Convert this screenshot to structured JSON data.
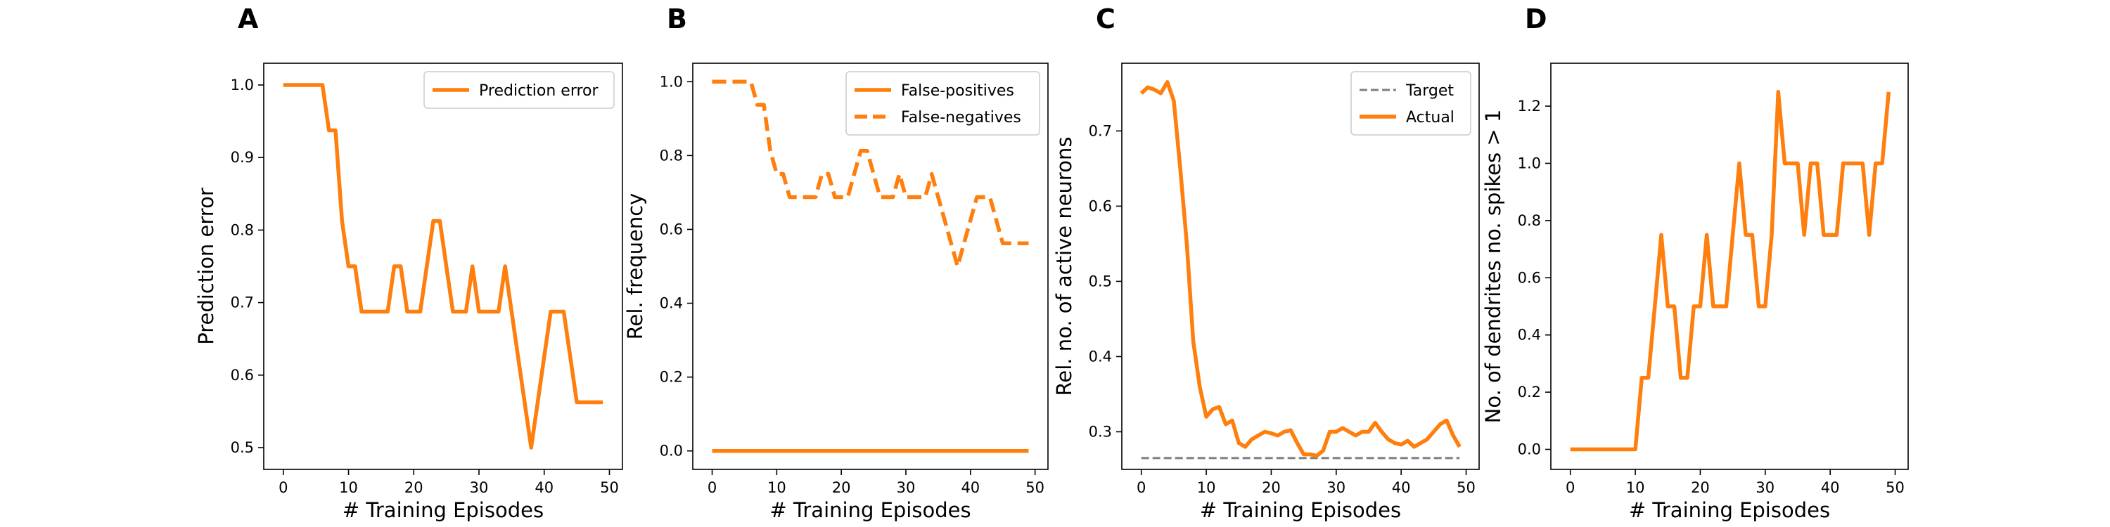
{
  "chart_data": [
    {
      "panel": "A",
      "type": "line",
      "xlabel": "# Training Episodes",
      "ylabel": "Prediction error",
      "xlim": [
        -3,
        52
      ],
      "ylim": [
        0.47,
        1.03
      ],
      "xticks": [
        0,
        10,
        20,
        30,
        40,
        50
      ],
      "yticks": [
        0.5,
        0.6,
        0.7,
        0.8,
        0.9,
        1.0
      ],
      "ytick_format": 1,
      "grid": false,
      "legend": "top-right",
      "series": [
        {
          "name": "Prediction error",
          "color": "#ff7f0e",
          "style": "solid",
          "x": [
            0,
            1,
            2,
            3,
            4,
            5,
            6,
            7,
            8,
            9,
            10,
            11,
            12,
            13,
            14,
            15,
            16,
            17,
            18,
            19,
            20,
            21,
            22,
            23,
            24,
            25,
            26,
            27,
            28,
            29,
            30,
            31,
            32,
            33,
            34,
            35,
            36,
            37,
            38,
            39,
            40,
            41,
            42,
            43,
            44,
            45,
            46,
            47,
            48,
            49
          ],
          "y": [
            1.0,
            1.0,
            1.0,
            1.0,
            1.0,
            1.0,
            1.0,
            0.9375,
            0.9375,
            0.8125,
            0.75,
            0.75,
            0.6875,
            0.6875,
            0.6875,
            0.6875,
            0.6875,
            0.75,
            0.75,
            0.6875,
            0.6875,
            0.6875,
            0.75,
            0.8125,
            0.8125,
            0.75,
            0.6875,
            0.6875,
            0.6875,
            0.75,
            0.6875,
            0.6875,
            0.6875,
            0.6875,
            0.75,
            0.6875,
            0.625,
            0.5625,
            0.5,
            0.5625,
            0.625,
            0.6875,
            0.6875,
            0.6875,
            0.625,
            0.5625,
            0.5625,
            0.5625,
            0.5625,
            0.5625
          ]
        }
      ]
    },
    {
      "panel": "B",
      "type": "line",
      "xlabel": "# Training Episodes",
      "ylabel": "Rel. frequency",
      "xlim": [
        -3,
        52
      ],
      "ylim": [
        -0.05,
        1.05
      ],
      "xticks": [
        0,
        10,
        20,
        30,
        40,
        50
      ],
      "yticks": [
        0.0,
        0.2,
        0.4,
        0.6,
        0.8,
        1.0
      ],
      "ytick_format": 1,
      "grid": false,
      "legend": "top-right",
      "series": [
        {
          "name": "False-positives",
          "color": "#ff7f0e",
          "style": "solid",
          "x": [
            0,
            1,
            2,
            3,
            4,
            5,
            6,
            7,
            8,
            9,
            10,
            11,
            12,
            13,
            14,
            15,
            16,
            17,
            18,
            19,
            20,
            21,
            22,
            23,
            24,
            25,
            26,
            27,
            28,
            29,
            30,
            31,
            32,
            33,
            34,
            35,
            36,
            37,
            38,
            39,
            40,
            41,
            42,
            43,
            44,
            45,
            46,
            47,
            48,
            49
          ],
          "y": [
            0,
            0,
            0,
            0,
            0,
            0,
            0,
            0,
            0,
            0,
            0,
            0,
            0,
            0,
            0,
            0,
            0,
            0,
            0,
            0,
            0,
            0,
            0,
            0,
            0,
            0,
            0,
            0,
            0,
            0,
            0,
            0,
            0,
            0,
            0,
            0,
            0,
            0,
            0,
            0,
            0,
            0,
            0,
            0,
            0,
            0,
            0,
            0,
            0,
            0
          ]
        },
        {
          "name": "False-negatives",
          "color": "#ff7f0e",
          "style": "dashed",
          "x": [
            0,
            1,
            2,
            3,
            4,
            5,
            6,
            7,
            8,
            9,
            10,
            11,
            12,
            13,
            14,
            15,
            16,
            17,
            18,
            19,
            20,
            21,
            22,
            23,
            24,
            25,
            26,
            27,
            28,
            29,
            30,
            31,
            32,
            33,
            34,
            35,
            36,
            37,
            38,
            39,
            40,
            41,
            42,
            43,
            44,
            45,
            46,
            47,
            48,
            49
          ],
          "y": [
            1.0,
            1.0,
            1.0,
            1.0,
            1.0,
            1.0,
            1.0,
            0.9375,
            0.9375,
            0.8125,
            0.75,
            0.75,
            0.6875,
            0.6875,
            0.6875,
            0.6875,
            0.6875,
            0.75,
            0.75,
            0.6875,
            0.6875,
            0.6875,
            0.75,
            0.8125,
            0.8125,
            0.75,
            0.6875,
            0.6875,
            0.6875,
            0.75,
            0.6875,
            0.6875,
            0.6875,
            0.6875,
            0.75,
            0.6875,
            0.625,
            0.5625,
            0.5,
            0.5625,
            0.625,
            0.6875,
            0.6875,
            0.6875,
            0.625,
            0.5625,
            0.5625,
            0.5625,
            0.5625,
            0.5625
          ]
        }
      ]
    },
    {
      "panel": "C",
      "type": "line",
      "xlabel": "# Training Episodes",
      "ylabel": "Rel. no. of active neurons",
      "xlim": [
        -3,
        52
      ],
      "ylim": [
        0.25,
        0.79
      ],
      "xticks": [
        0,
        10,
        20,
        30,
        40,
        50
      ],
      "yticks": [
        0.3,
        0.4,
        0.5,
        0.6,
        0.7
      ],
      "ytick_format": 1,
      "grid": false,
      "legend": "top-right",
      "series": [
        {
          "name": "Target",
          "color": "#7f7f7f",
          "style": "dashed",
          "x": [
            0,
            49
          ],
          "y": [
            0.265,
            0.265
          ]
        },
        {
          "name": "Actual",
          "color": "#ff7f0e",
          "style": "solid",
          "x": [
            0,
            1,
            2,
            3,
            4,
            5,
            6,
            7,
            8,
            9,
            10,
            11,
            12,
            13,
            14,
            15,
            16,
            17,
            18,
            19,
            20,
            21,
            22,
            23,
            24,
            25,
            26,
            27,
            28,
            29,
            30,
            31,
            32,
            33,
            34,
            35,
            36,
            37,
            38,
            39,
            40,
            41,
            42,
            43,
            44,
            45,
            46,
            47,
            48,
            49
          ],
          "y": [
            0.75,
            0.758,
            0.755,
            0.75,
            0.765,
            0.74,
            0.65,
            0.55,
            0.42,
            0.36,
            0.32,
            0.33,
            0.333,
            0.31,
            0.315,
            0.285,
            0.28,
            0.29,
            0.295,
            0.3,
            0.298,
            0.295,
            0.3,
            0.302,
            0.285,
            0.27,
            0.27,
            0.268,
            0.275,
            0.3,
            0.3,
            0.305,
            0.3,
            0.295,
            0.3,
            0.3,
            0.312,
            0.3,
            0.29,
            0.285,
            0.283,
            0.288,
            0.28,
            0.285,
            0.29,
            0.3,
            0.31,
            0.315,
            0.295,
            0.28
          ]
        }
      ]
    },
    {
      "panel": "D",
      "type": "line",
      "xlabel": "# Training Episodes",
      "ylabel": "No. of dendrites no. spikes > 1",
      "xlim": [
        -3,
        52
      ],
      "ylim": [
        -0.07,
        1.35
      ],
      "xticks": [
        0,
        10,
        20,
        30,
        40,
        50
      ],
      "yticks": [
        0.0,
        0.2,
        0.4,
        0.6,
        0.8,
        1.0,
        1.2
      ],
      "ytick_format": 1,
      "grid": false,
      "legend": "none",
      "series": [
        {
          "color": "#ff7f0e",
          "style": "solid",
          "x": [
            0,
            1,
            2,
            3,
            4,
            5,
            6,
            7,
            8,
            9,
            10,
            11,
            12,
            13,
            14,
            15,
            16,
            17,
            18,
            19,
            20,
            21,
            22,
            23,
            24,
            25,
            26,
            27,
            28,
            29,
            30,
            31,
            32,
            33,
            34,
            35,
            36,
            37,
            38,
            39,
            40,
            41,
            42,
            43,
            44,
            45,
            46,
            47,
            48,
            49
          ],
          "y": [
            0,
            0,
            0,
            0,
            0,
            0,
            0,
            0,
            0,
            0,
            0,
            0.25,
            0.25,
            0.5,
            0.75,
            0.5,
            0.5,
            0.25,
            0.25,
            0.5,
            0.5,
            0.75,
            0.5,
            0.5,
            0.5,
            0.75,
            1.0,
            0.75,
            0.75,
            0.5,
            0.5,
            0.75,
            1.25,
            1.0,
            1.0,
            1.0,
            0.75,
            1.0,
            1.0,
            0.75,
            0.75,
            0.75,
            1.0,
            1.0,
            1.0,
            1.0,
            0.75,
            1.0,
            1.0,
            1.25
          ]
        }
      ]
    }
  ]
}
